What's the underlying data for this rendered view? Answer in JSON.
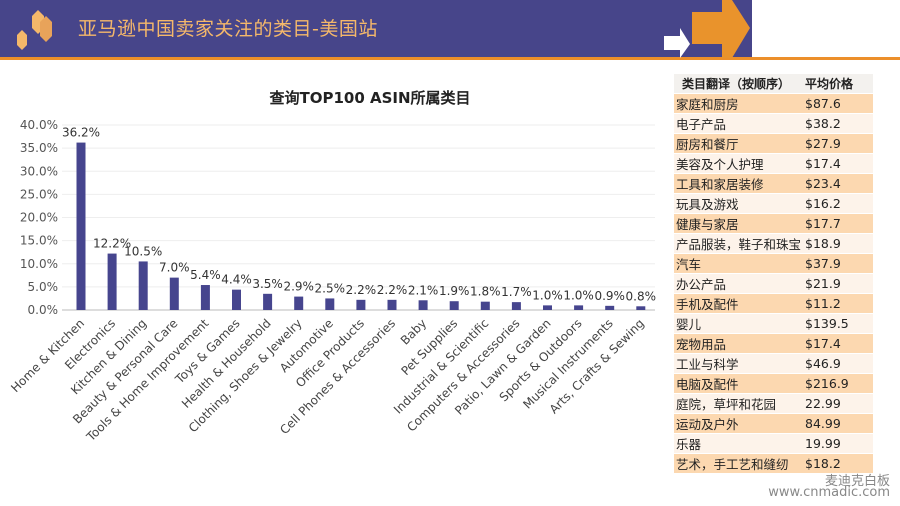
{
  "header": {
    "title": "亚马逊中国卖家关注的类目-美国站",
    "colors": {
      "band": "#47458a",
      "accent": "#ec8f2a",
      "title": "#f5b86a"
    }
  },
  "chart_data": {
    "type": "bar",
    "title": "查询TOP100 ASIN所属类目",
    "categories": [
      "Home & Kitchen",
      "Electronics",
      "Kitchen & Dining",
      "Beauty & Personal Care",
      "Tools & Home Improvement",
      "Toys & Games",
      "Health & Household",
      "Clothing, Shoes & Jewelry",
      "Automotive",
      "Office Products",
      "Cell Phones & Accessories",
      "Baby",
      "Pet Supplies",
      "Industrial & Scientific",
      "Computers & Accessories",
      "Patio, Lawn & Garden",
      "Sports & Outdoors",
      "Musical Instruments",
      "Arts, Crafts & Sewing"
    ],
    "values": [
      36.2,
      12.2,
      10.5,
      7.0,
      5.4,
      4.4,
      3.5,
      2.9,
      2.5,
      2.2,
      2.2,
      2.1,
      1.9,
      1.8,
      1.7,
      1.0,
      1.0,
      0.9,
      0.8
    ],
    "data_labels": [
      "36.2%",
      "12.2%",
      "10.5%",
      "7.0%",
      "5.4%",
      "4.4%",
      "3.5%",
      "2.9%",
      "2.5%",
      "2.2%",
      "2.2%",
      "2.1%",
      "1.9%",
      "1.8%",
      "1.7%",
      "1.0%",
      "1.0%",
      "0.9%",
      "0.8%"
    ],
    "ylim": [
      0,
      40
    ],
    "yticks": [
      "0.0%",
      "5.0%",
      "10.0%",
      "15.0%",
      "20.0%",
      "25.0%",
      "30.0%",
      "35.0%",
      "40.0%"
    ],
    "grid": true,
    "color": "#46458e"
  },
  "table": {
    "headers": [
      "类目翻译（按顺序）",
      "平均价格"
    ],
    "rows": [
      [
        "家庭和厨房",
        "$87.6"
      ],
      [
        "电子产品",
        "$38.2"
      ],
      [
        "厨房和餐厅",
        "$27.9"
      ],
      [
        "美容及个人护理",
        "$17.4"
      ],
      [
        "工具和家居装修",
        "$23.4"
      ],
      [
        "玩具及游戏",
        "$16.2"
      ],
      [
        "健康与家居",
        "$17.7"
      ],
      [
        "产品服装，鞋子和珠宝",
        "$18.9"
      ],
      [
        "汽车",
        "$37.9"
      ],
      [
        "办公产品",
        "$21.9"
      ],
      [
        "手机及配件",
        "$11.2"
      ],
      [
        "婴儿",
        "$139.5"
      ],
      [
        "宠物用品",
        "$17.4"
      ],
      [
        "工业与科学",
        "$46.9"
      ],
      [
        "电脑及配件",
        "$216.9"
      ],
      [
        "庭院，草坪和花园",
        "22.99"
      ],
      [
        "运动及户外",
        "84.99"
      ],
      [
        "乐器",
        "19.99"
      ],
      [
        "艺术，手工艺和缝纫",
        "$18.2"
      ]
    ]
  },
  "watermark": {
    "name": "麦迪克白板",
    "url": "www.cnmadic.com"
  }
}
